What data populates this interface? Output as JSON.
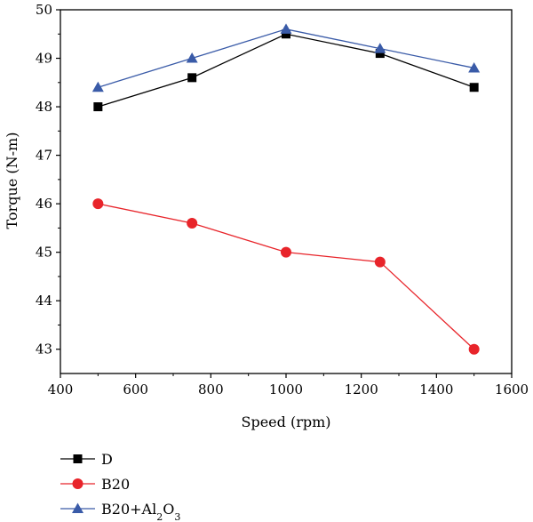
{
  "chart_data": {
    "type": "line",
    "title": "",
    "xlabel": "Speed (rpm)",
    "ylabel": "Torque (N-m)",
    "xlim": [
      400,
      1600
    ],
    "ylim": [
      42.5,
      50
    ],
    "xticks": [
      400,
      600,
      800,
      1000,
      1200,
      1400,
      1600
    ],
    "yticks": [
      43,
      44,
      45,
      46,
      47,
      48,
      49,
      50
    ],
    "grid": false,
    "legend": "bottom-left, below plot",
    "x": [
      500,
      750,
      1000,
      1250,
      1500
    ],
    "series": [
      {
        "name": "D",
        "sub": "",
        "tail": "",
        "marker": "square",
        "color": "#000000",
        "values": [
          48.0,
          48.6,
          49.5,
          49.1,
          48.4
        ]
      },
      {
        "name": "B20",
        "sub": "",
        "tail": "",
        "marker": "circle",
        "color": "#e8242a",
        "values": [
          46.0,
          45.6,
          45.0,
          44.8,
          43.0
        ]
      },
      {
        "name": "B20+Al",
        "sub": "2",
        "tail": "O",
        "sub2": "3",
        "marker": "triangle",
        "color": "#3a5ba8",
        "values": [
          48.4,
          49.0,
          49.6,
          49.2,
          48.8
        ]
      }
    ]
  }
}
